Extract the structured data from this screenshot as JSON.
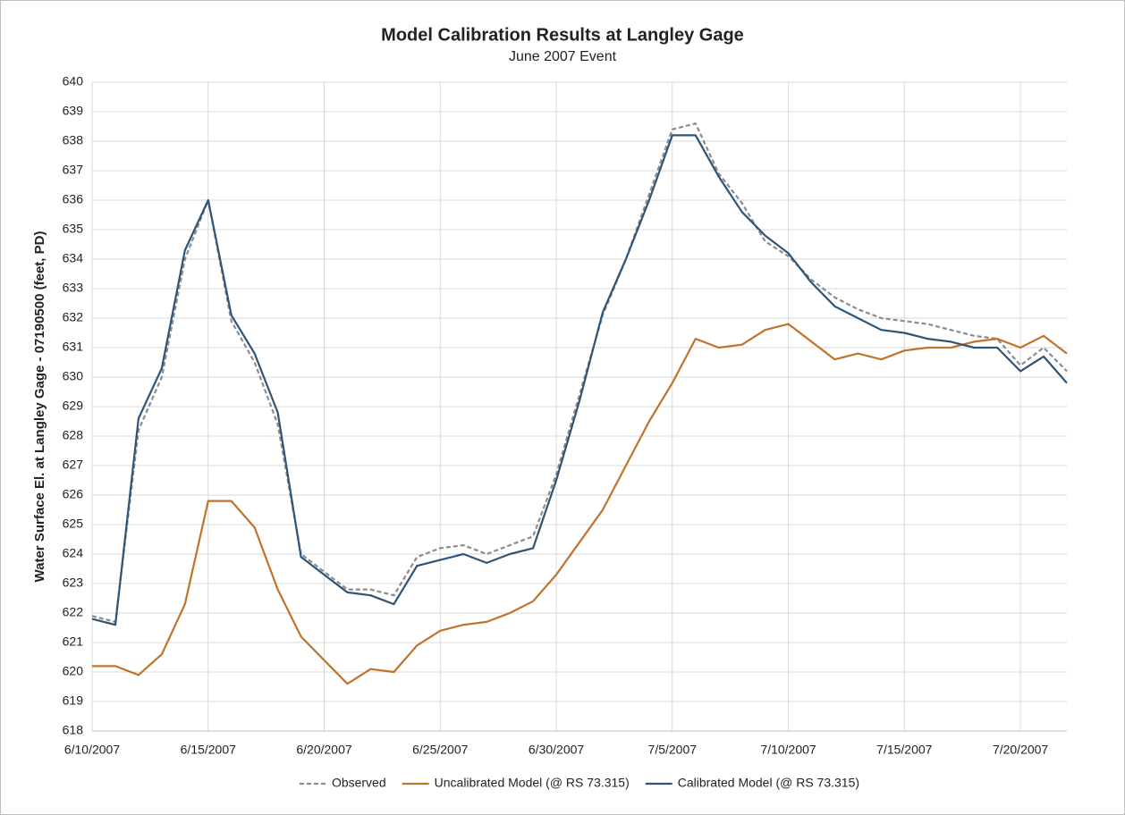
{
  "chart_data": {
    "type": "line",
    "title": "Model Calibration Results at Langley Gage",
    "subtitle": "June 2007 Event",
    "y_label": "Water Surface El. at Langley Gage - 07190500 (feet, PD)",
    "x": [
      "2007-06-10",
      "2007-06-11",
      "2007-06-12",
      "2007-06-13",
      "2007-06-14",
      "2007-06-15",
      "2007-06-16",
      "2007-06-17",
      "2007-06-18",
      "2007-06-19",
      "2007-06-20",
      "2007-06-21",
      "2007-06-22",
      "2007-06-23",
      "2007-06-24",
      "2007-06-25",
      "2007-06-26",
      "2007-06-27",
      "2007-06-28",
      "2007-06-29",
      "2007-06-30",
      "2007-07-01",
      "2007-07-02",
      "2007-07-03",
      "2007-07-04",
      "2007-07-05",
      "2007-07-06",
      "2007-07-07",
      "2007-07-08",
      "2007-07-09",
      "2007-07-10",
      "2007-07-11",
      "2007-07-12",
      "2007-07-13",
      "2007-07-14",
      "2007-07-15",
      "2007-07-16",
      "2007-07-17",
      "2007-07-18",
      "2007-07-19",
      "2007-07-20",
      "2007-07-21",
      "2007-07-22"
    ],
    "series": [
      {
        "name": "Observed",
        "color": "#8c8c8c",
        "dash": true,
        "values": [
          621.9,
          621.7,
          628.2,
          630.0,
          634.0,
          636.0,
          631.9,
          630.5,
          628.4,
          624.0,
          623.4,
          622.8,
          622.8,
          622.6,
          623.9,
          624.2,
          624.3,
          624.0,
          624.3,
          624.6,
          626.7,
          629.4,
          632.1,
          634.0,
          636.2,
          638.4,
          638.6,
          636.9,
          635.9,
          634.6,
          634.1,
          633.3,
          632.7,
          632.3,
          632.0,
          631.9,
          631.8,
          631.6,
          631.4,
          631.3,
          630.4,
          631.0,
          630.2
        ]
      },
      {
        "name": "Uncalibrated Model (@ RS 73.315)",
        "color": "#c0732a",
        "dash": false,
        "values": [
          620.2,
          620.2,
          619.9,
          620.6,
          622.3,
          625.8,
          625.8,
          624.9,
          622.8,
          621.2,
          620.4,
          619.6,
          620.1,
          620.0,
          620.9,
          621.4,
          621.6,
          621.7,
          622.0,
          622.4,
          623.3,
          624.4,
          625.5,
          627.0,
          628.5,
          629.8,
          631.3,
          631.0,
          631.1,
          631.6,
          631.8,
          631.2,
          630.6,
          630.8,
          630.6,
          630.9,
          631.0,
          631.0,
          631.2,
          631.3,
          631.0,
          631.4,
          630.8
        ]
      },
      {
        "name": "Calibrated Model  (@ RS 73.315)",
        "color": "#2e5577",
        "dash": false,
        "values": [
          621.8,
          621.6,
          628.6,
          630.3,
          634.3,
          636.0,
          632.1,
          630.8,
          628.8,
          623.9,
          623.3,
          622.7,
          622.6,
          622.3,
          623.6,
          623.8,
          624.0,
          623.7,
          624.0,
          624.2,
          626.5,
          629.2,
          632.2,
          634.0,
          636.0,
          638.2,
          638.2,
          636.8,
          635.6,
          634.8,
          634.2,
          633.2,
          632.4,
          632.0,
          631.6,
          631.5,
          631.3,
          631.2,
          631.0,
          631.0,
          630.2,
          630.7,
          629.8
        ]
      }
    ],
    "xlim": [
      "2007-06-10",
      "2007-07-22"
    ],
    "xticks": [
      {
        "value": "2007-06-10",
        "label": "6/10/2007"
      },
      {
        "value": "2007-06-15",
        "label": "6/15/2007"
      },
      {
        "value": "2007-06-20",
        "label": "6/20/2007"
      },
      {
        "value": "2007-06-25",
        "label": "6/25/2007"
      },
      {
        "value": "2007-06-30",
        "label": "6/30/2007"
      },
      {
        "value": "2007-07-05",
        "label": "7/5/2007"
      },
      {
        "value": "2007-07-10",
        "label": "7/10/2007"
      },
      {
        "value": "2007-07-15",
        "label": "7/15/2007"
      },
      {
        "value": "2007-07-20",
        "label": "7/20/2007"
      }
    ],
    "ylim": [
      618,
      640
    ],
    "yticks": [
      618,
      619,
      620,
      621,
      622,
      623,
      624,
      625,
      626,
      627,
      628,
      629,
      630,
      631,
      632,
      633,
      634,
      635,
      636,
      637,
      638,
      639,
      640
    ],
    "grid": true,
    "legend": "bottom"
  }
}
